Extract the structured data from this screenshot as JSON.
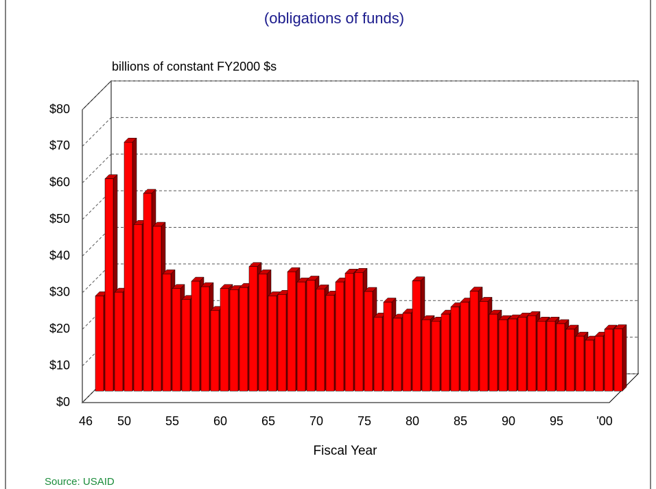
{
  "chart_data": {
    "type": "bar3d",
    "title": "(obligations of funds)",
    "subtitle": "billions of constant FY2000 $s",
    "x_label": "Fiscal Year",
    "source": "Source: USAID",
    "categories": [
      "46",
      null,
      null,
      null,
      "50",
      null,
      null,
      null,
      null,
      "55",
      null,
      null,
      null,
      null,
      "60",
      null,
      null,
      null,
      null,
      "65",
      null,
      null,
      null,
      null,
      "70",
      null,
      null,
      null,
      null,
      "75",
      null,
      null,
      null,
      null,
      "80",
      null,
      null,
      null,
      null,
      "85",
      null,
      null,
      null,
      null,
      "90",
      null,
      null,
      null,
      null,
      "95",
      null,
      null,
      null,
      null,
      "'00"
    ],
    "values": [
      26,
      58,
      27,
      68,
      45.5,
      54,
      45,
      32,
      28,
      25,
      30,
      28.5,
      22,
      28,
      27.7,
      28.3,
      34,
      32,
      26,
      26.4,
      32.6,
      29.8,
      30.3,
      27.9,
      26.2,
      29.8,
      32.2,
      32.4,
      27.2,
      20.2,
      24.3,
      19.9,
      21.3,
      30.1,
      19.5,
      19.1,
      21,
      23,
      24.3,
      27.3,
      24.5,
      21,
      19.5,
      19.7,
      20.2,
      20.6,
      19.1,
      19.1,
      18.4,
      16.9,
      15,
      13.9,
      15,
      16.9,
      17
    ],
    "color": "#ff0000",
    "ylim": [
      0,
      80
    ],
    "yticks": [
      {
        "value": 0,
        "label": "$0"
      },
      {
        "value": 10,
        "label": "$10"
      },
      {
        "value": 20,
        "label": "$20"
      },
      {
        "value": 30,
        "label": "$30"
      },
      {
        "value": 40,
        "label": "$40"
      },
      {
        "value": 50,
        "label": "$50"
      },
      {
        "value": 60,
        "label": "$60"
      },
      {
        "value": 70,
        "label": "$70"
      },
      {
        "value": 80,
        "label": "$80"
      }
    ],
    "grid": true
  }
}
